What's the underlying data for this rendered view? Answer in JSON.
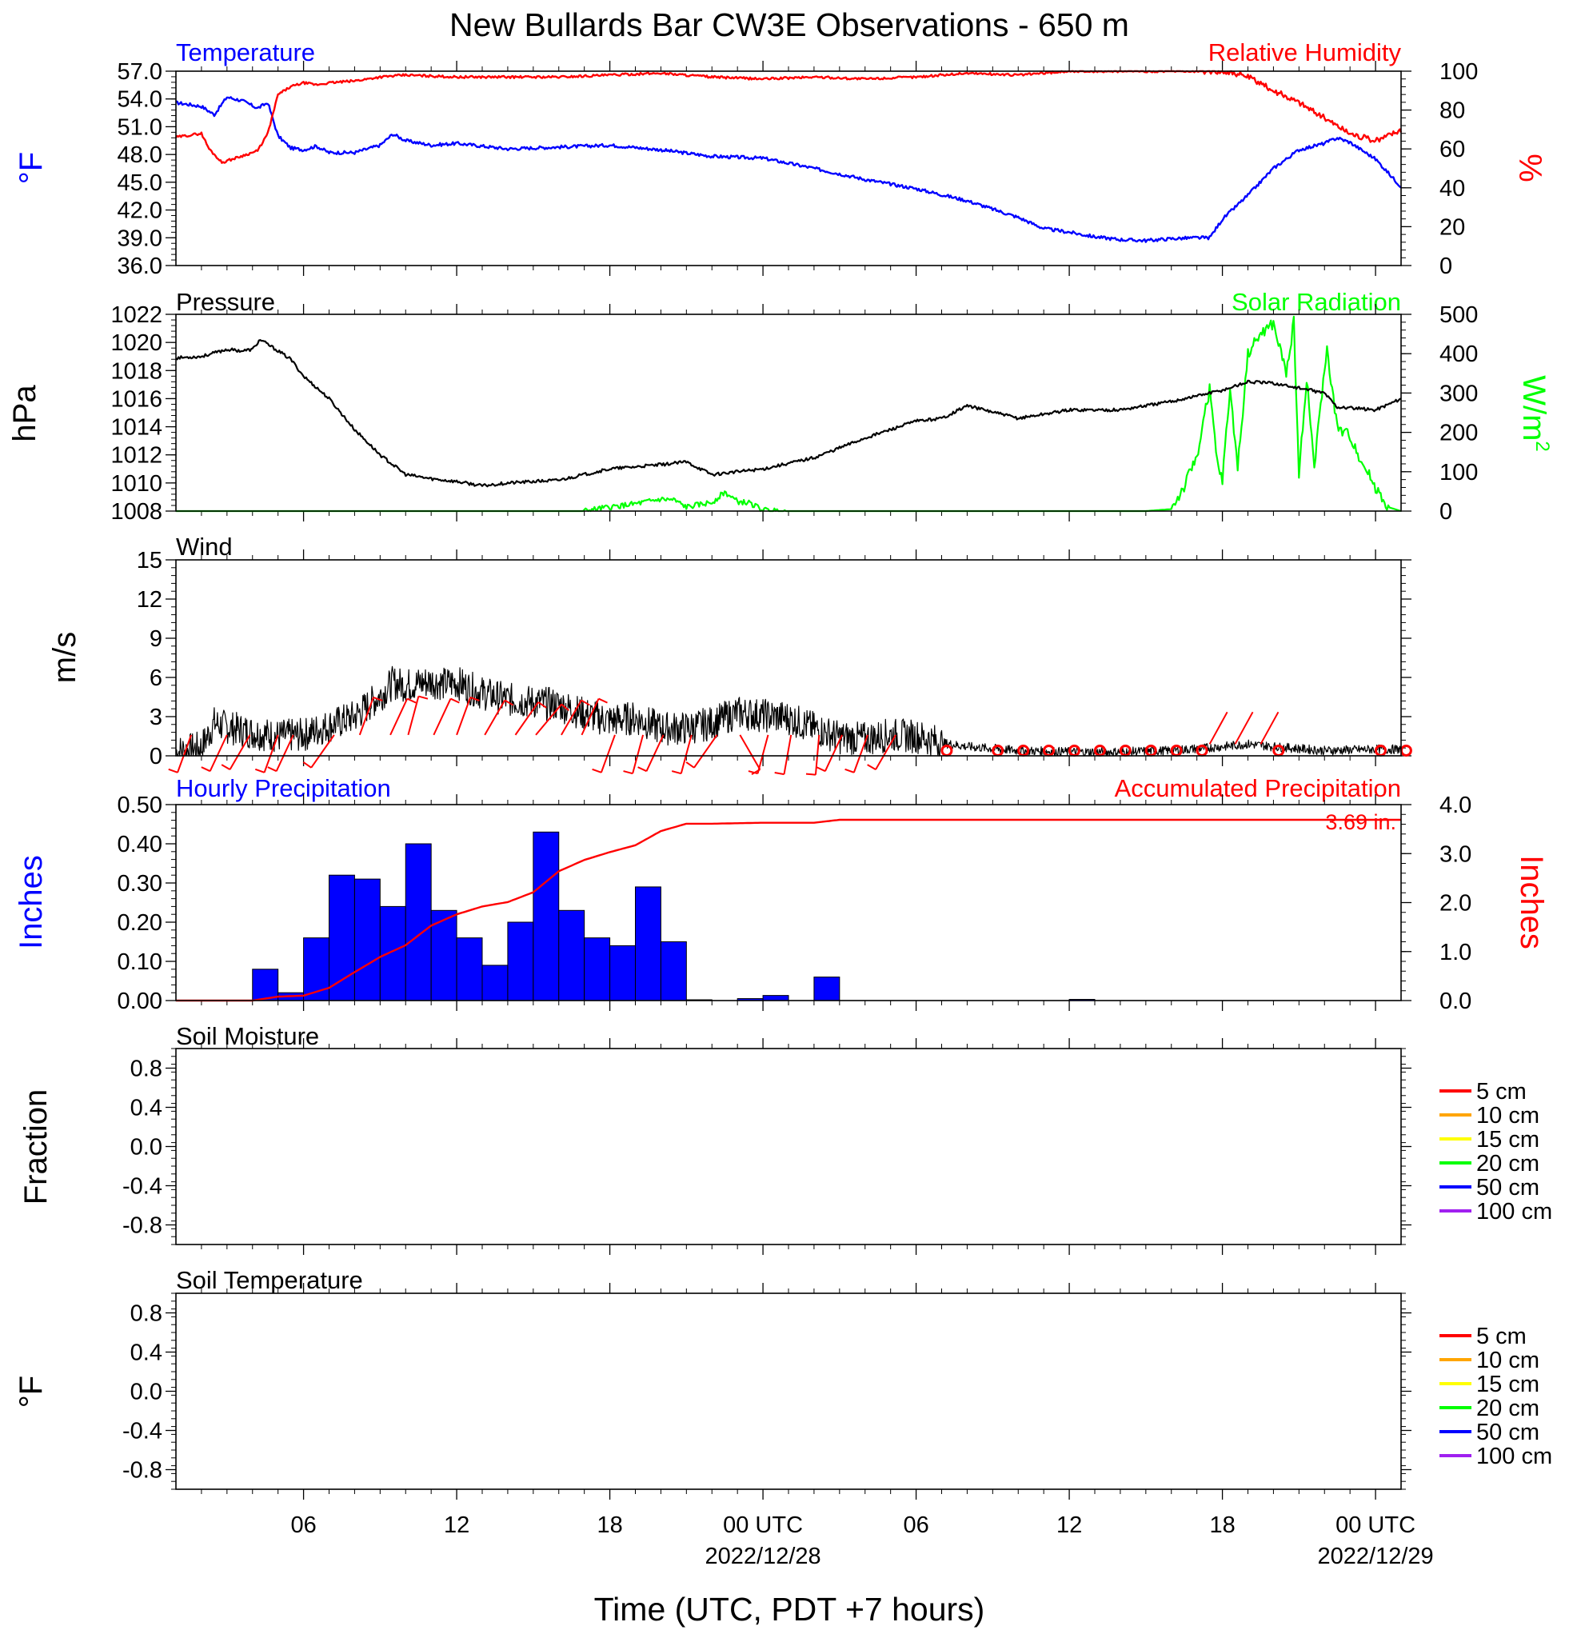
{
  "figure": {
    "title": "New Bullards Bar CW3E Observations - 650 m",
    "xlabel": "Time (UTC, PDT +7 hours)",
    "xticks": [
      {
        "hour": 6,
        "label": "06",
        "sub": ""
      },
      {
        "hour": 12,
        "label": "12",
        "sub": ""
      },
      {
        "hour": 18,
        "label": "18",
        "sub": ""
      },
      {
        "hour": 24,
        "label": "00 UTC",
        "sub": "2022/12/28"
      },
      {
        "hour": 30,
        "label": "06",
        "sub": ""
      },
      {
        "hour": 36,
        "label": "12",
        "sub": ""
      },
      {
        "hour": 42,
        "label": "18",
        "sub": ""
      },
      {
        "hour": 48,
        "label": "00 UTC",
        "sub": "2022/12/29"
      }
    ],
    "xrange_hours": [
      1,
      49
    ],
    "colors": {
      "temperature": "#0000ff",
      "humidity": "#ff0000",
      "pressure": "#000000",
      "solar": "#00ff00",
      "wind": "#000000",
      "barb": "#ff0000",
      "precip_bar": "#0000ff",
      "accum": "#ff0000"
    }
  },
  "chart_data": [
    {
      "type": "line",
      "title_left": "Temperature",
      "title_right": "Relative Humidity",
      "ylabel_left": "°F",
      "ylabel_right": "%",
      "ylim_left": [
        36,
        57
      ],
      "yticks_left": [
        "57.0",
        "54.0",
        "51.0",
        "48.0",
        "45.0",
        "42.0",
        "39.0",
        "36.0"
      ],
      "ylim_right": [
        0,
        100
      ],
      "yticks_right": [
        "100",
        "80",
        "60",
        "40",
        "20",
        "0"
      ],
      "series": [
        {
          "name": "Temperature",
          "axis": "left",
          "x": [
            1,
            2,
            2.5,
            3,
            3.6,
            4.2,
            4.6,
            5,
            5.5,
            6,
            6.5,
            7,
            8,
            9,
            9.5,
            10,
            11,
            12,
            14,
            16,
            18,
            20,
            22,
            24,
            26,
            28,
            30,
            32,
            34,
            35,
            36,
            37,
            38,
            39,
            40,
            41,
            41.5,
            42,
            43,
            44,
            45,
            46,
            46.5,
            47,
            48,
            49
          ],
          "values": [
            53.6,
            53.2,
            52.3,
            54.2,
            53.8,
            53.0,
            53.6,
            50.0,
            48.7,
            48.5,
            48.9,
            48.2,
            48.2,
            49.0,
            50.2,
            49.5,
            49.0,
            49.2,
            48.6,
            48.8,
            49.0,
            48.5,
            47.8,
            47.6,
            46.5,
            45.3,
            44.3,
            43.0,
            41.2,
            40.0,
            39.6,
            39.1,
            38.8,
            38.7,
            38.9,
            39.0,
            39.0,
            41.0,
            43.6,
            46.5,
            48.5,
            49.2,
            49.8,
            49.3,
            47.5,
            44.5
          ]
        },
        {
          "name": "Relative Humidity",
          "axis": "right",
          "x": [
            1,
            2,
            2.3,
            2.8,
            3.5,
            4.2,
            4.6,
            5,
            5.5,
            6,
            6.5,
            7,
            8,
            9,
            10,
            12,
            14,
            16,
            18,
            20,
            22,
            24,
            26,
            28,
            30,
            32,
            34,
            36,
            38,
            40,
            41,
            42,
            42.5,
            43,
            44,
            45,
            46,
            47,
            48,
            49
          ],
          "values": [
            66,
            68,
            60,
            53,
            56,
            59,
            68,
            88,
            92,
            94,
            93,
            94,
            95,
            97,
            98,
            97,
            97,
            97,
            98,
            99,
            97,
            96,
            97,
            96,
            97,
            99,
            98,
            100,
            100,
            100,
            100,
            100,
            99,
            97,
            90,
            84,
            76,
            68,
            64,
            70
          ]
        }
      ]
    },
    {
      "type": "line",
      "title_left": "Pressure",
      "title_right": "Solar Radiation",
      "ylabel_left": "hPa",
      "ylabel_right": "W/m",
      "ylabel_right_sup": "2",
      "ylim_left": [
        1008,
        1022
      ],
      "yticks_left": [
        "1022",
        "1020",
        "1018",
        "1016",
        "1014",
        "1012",
        "1010",
        "1008"
      ],
      "ylim_right": [
        0,
        500
      ],
      "yticks_right": [
        "500",
        "400",
        "300",
        "200",
        "100",
        "0"
      ],
      "series": [
        {
          "name": "Pressure",
          "axis": "left",
          "x": [
            1,
            2,
            3,
            3.6,
            4,
            4.3,
            5,
            5.5,
            6,
            7,
            8,
            9,
            10,
            11,
            12,
            13,
            14,
            16,
            18,
            20,
            21,
            22,
            24,
            26,
            28,
            30,
            31,
            32,
            34,
            36,
            38,
            40,
            42,
            43,
            44,
            46,
            46.5,
            48,
            49
          ],
          "values": [
            1018.9,
            1019.0,
            1019.5,
            1019.4,
            1019.5,
            1020.2,
            1019.4,
            1018.8,
            1017.6,
            1016.0,
            1013.8,
            1012.0,
            1010.6,
            1010.3,
            1010.1,
            1009.8,
            1010.0,
            1010.2,
            1011.0,
            1011.3,
            1011.5,
            1010.6,
            1011.0,
            1011.8,
            1013.2,
            1014.4,
            1014.6,
            1015.5,
            1014.6,
            1015.2,
            1015.2,
            1015.8,
            1016.6,
            1017.2,
            1017.1,
            1016.4,
            1015.4,
            1015.2,
            1016.0
          ]
        },
        {
          "name": "Solar Radiation",
          "axis": "right",
          "x": [
            1,
            17,
            18,
            19,
            20,
            20.5,
            21,
            22,
            22.5,
            23,
            23.5,
            24,
            25,
            39,
            40,
            40.5,
            41,
            41.5,
            41.8,
            42,
            42.3,
            42.6,
            43,
            43.5,
            44,
            44.5,
            44.8,
            45,
            45.3,
            45.6,
            45.9,
            46.1,
            46.5,
            47,
            47.5,
            48,
            48.5,
            49
          ],
          "values": [
            0,
            0,
            10,
            18,
            30,
            28,
            10,
            22,
            48,
            24,
            20,
            2,
            0,
            0,
            5,
            60,
            140,
            310,
            120,
            80,
            310,
            110,
            400,
            450,
            475,
            350,
            480,
            90,
            340,
            110,
            300,
            410,
            210,
            190,
            120,
            60,
            10,
            0
          ]
        }
      ]
    },
    {
      "type": "line",
      "title_left": "Wind",
      "ylabel_left": "m/s",
      "ylim_left": [
        0,
        15
      ],
      "yticks_left": [
        "15",
        "12",
        "9",
        "6",
        "3",
        "0"
      ],
      "series": [
        {
          "name": "Wind speed",
          "axis": "left",
          "x": [
            1,
            2,
            2.5,
            3,
            4,
            5,
            6,
            7,
            8,
            9,
            9.5,
            10,
            11,
            11.5,
            12,
            13,
            14,
            15,
            16,
            17,
            18,
            19,
            20,
            21,
            22,
            23,
            24,
            25,
            26,
            27,
            28,
            29,
            30,
            31,
            32,
            34,
            36,
            38,
            40,
            42,
            43,
            44,
            46,
            48,
            49
          ],
          "values": [
            0.3,
            0.6,
            2.5,
            2.2,
            1.8,
            1.5,
            1.6,
            2.3,
            3.0,
            4.6,
            5.6,
            5.4,
            5.7,
            5.5,
            5.6,
            4.8,
            4.3,
            4.1,
            3.9,
            3.2,
            2.7,
            2.9,
            2.1,
            2.1,
            2.5,
            3.3,
            3.1,
            2.9,
            2.1,
            1.4,
            1.3,
            1.6,
            1.5,
            1.0,
            0.7,
            0.4,
            0.3,
            0.3,
            0.4,
            0.7,
            0.9,
            0.7,
            0.4,
            0.5,
            0.5
          ]
        }
      ],
      "barbs": {
        "x": [
          1.6,
          3,
          3.9,
          5,
          5.6,
          7.2,
          8.2,
          9.4,
          10.1,
          11.1,
          12,
          13.1,
          14.3,
          15.1,
          16.1,
          16.9,
          18.2,
          19.3,
          20.1,
          21.2,
          22.2,
          23.1,
          24.2,
          25.1,
          26.2,
          27.1,
          28.1,
          29.2
        ],
        "calm_x": [
          31.2,
          33.2,
          34.2,
          35.2,
          36.2,
          37.2,
          38.2,
          39.2,
          40.2,
          41.2,
          44.2,
          48.2,
          49.2
        ]
      }
    },
    {
      "type": "bar",
      "title_left": "Hourly Precipitation",
      "title_right": "Accumulated Precipitation",
      "total_label": "3.69 in.",
      "ylabel_left": "Inches",
      "ylabel_right": "Inches",
      "ylim_left": [
        0,
        0.5
      ],
      "yticks_left": [
        "0.50",
        "0.40",
        "0.30",
        "0.20",
        "0.10",
        "0.00"
      ],
      "ylim_right": [
        0,
        4
      ],
      "yticks_right": [
        "4.0",
        "3.0",
        "2.0",
        "1.0",
        "0.0"
      ],
      "bars_start_hour": [
        4,
        5,
        6,
        7,
        8,
        9,
        10,
        11,
        12,
        13,
        14,
        15,
        16,
        17,
        18,
        19,
        20,
        21,
        22,
        23,
        24,
        25,
        26,
        27,
        28,
        29,
        30,
        31,
        32,
        33,
        34,
        35,
        36,
        37
      ],
      "values": [
        0.08,
        0.02,
        0.16,
        0.32,
        0.31,
        0.24,
        0.4,
        0.23,
        0.16,
        0.09,
        0.2,
        0.43,
        0.23,
        0.16,
        0.14,
        0.29,
        0.15,
        0.002,
        0,
        0.005,
        0.013,
        0,
        0.06,
        0,
        0,
        0,
        0,
        0,
        0,
        0,
        0,
        0,
        0.003,
        0
      ],
      "accumulated": {
        "x": [
          1,
          4,
          5,
          6,
          7,
          8,
          9,
          10,
          11,
          12,
          13,
          14,
          15,
          16,
          17,
          18,
          19,
          20,
          21,
          22,
          23,
          24,
          26,
          27,
          36,
          49
        ],
        "values": [
          0,
          0,
          0.08,
          0.1,
          0.26,
          0.58,
          0.89,
          1.13,
          1.53,
          1.76,
          1.92,
          2.01,
          2.21,
          2.64,
          2.87,
          3.03,
          3.17,
          3.46,
          3.61,
          3.61,
          3.62,
          3.63,
          3.63,
          3.69,
          3.69,
          3.69
        ]
      }
    },
    {
      "type": "line",
      "title_left": "Soil Moisture",
      "ylabel_left": "Fraction",
      "ylim_left": [
        -1,
        1
      ],
      "yticks_left": [
        "0.8",
        "0.4",
        "0.0",
        "-0.4",
        "-0.8"
      ],
      "legend": [
        {
          "label": "5 cm",
          "color": "#ff0000"
        },
        {
          "label": "10 cm",
          "color": "#ffa500"
        },
        {
          "label": "15 cm",
          "color": "#ffff00"
        },
        {
          "label": "20 cm",
          "color": "#00ff00"
        },
        {
          "label": "50 cm",
          "color": "#0000ff"
        },
        {
          "label": "100 cm",
          "color": "#a020f0"
        }
      ],
      "legend_position": "right",
      "series": []
    },
    {
      "type": "line",
      "title_left": "Soil Temperature",
      "ylabel_left": "°F",
      "ylim_left": [
        -1,
        1
      ],
      "yticks_left": [
        "0.8",
        "0.4",
        "0.0",
        "-0.4",
        "-0.8"
      ],
      "legend": [
        {
          "label": "5 cm",
          "color": "#ff0000"
        },
        {
          "label": "10 cm",
          "color": "#ffa500"
        },
        {
          "label": "15 cm",
          "color": "#ffff00"
        },
        {
          "label": "20 cm",
          "color": "#00ff00"
        },
        {
          "label": "50 cm",
          "color": "#0000ff"
        },
        {
          "label": "100 cm",
          "color": "#a020f0"
        }
      ],
      "legend_position": "right",
      "series": []
    }
  ]
}
